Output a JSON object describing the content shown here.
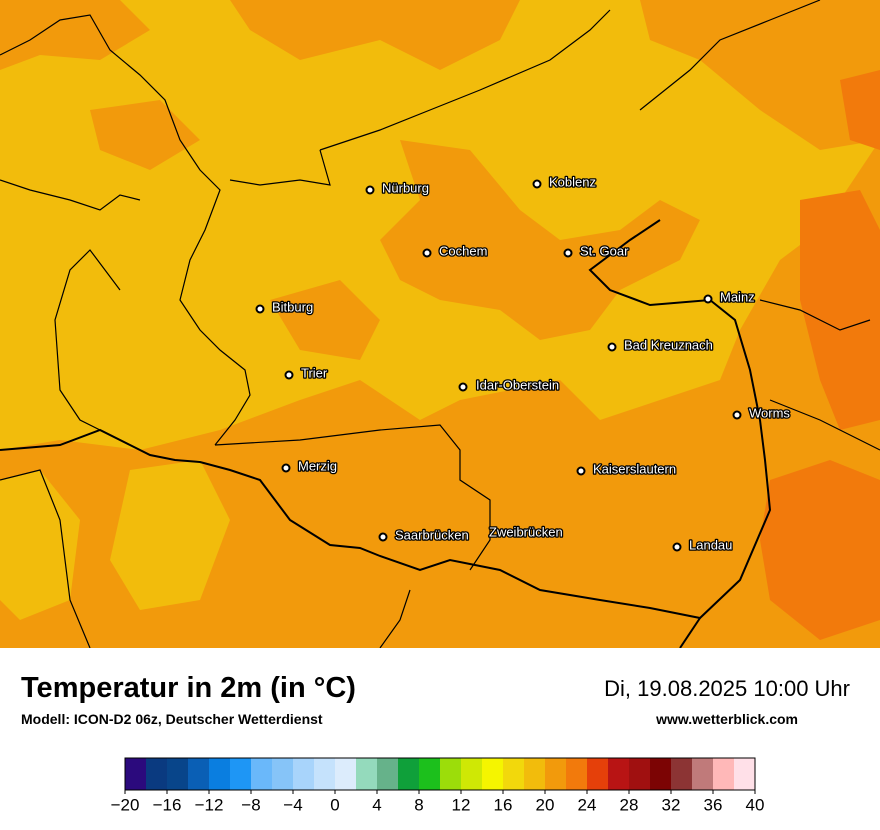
{
  "map": {
    "title": "Temperatur in 2m (in °C)",
    "subtitle": "Modell: ICON-D2 06z, Deutscher Wetterdienst",
    "date": "Di, 19.08.2025 10:00 Uhr",
    "website": "www.wetterblick.com",
    "cities": [
      "Nürburg",
      "Koblenz",
      "Cochem",
      "St. Goar",
      "Mainz",
      "Bitburg",
      "Bad Kreuznach",
      "Trier",
      "Idar-Oberstein",
      "Worms",
      "Merzig",
      "Kaiserslautern",
      "Saarbrücken",
      "Zweibrücken",
      "Landau"
    ],
    "colorbar": {
      "lim": [
        -20,
        40
      ],
      "colors": [
        "#2b0a7d",
        "#0a3a80",
        "#08458a",
        "#0a5fb5",
        "#0a7ee0",
        "#1e96f5",
        "#6ab8fa",
        "#86c4f8",
        "#a8d4fb",
        "#c5e2fc",
        "#dcecfc",
        "#94dabc",
        "#66b28a",
        "#0fa03a",
        "#1cc01c",
        "#9cdd0a",
        "#cfe805",
        "#f5f500",
        "#f2d80c",
        "#f2bc0c",
        "#f29a0c",
        "#f27a0c",
        "#e5400a",
        "#b81414",
        "#a01010",
        "#7c0404",
        "#8c3434",
        "#c07a7a",
        "#ffb8b8",
        "#ffe0e8"
      ],
      "ticks": [
        {
          "value": -20,
          "label": "−20"
        },
        {
          "value": -16,
          "label": "−16"
        },
        {
          "value": -12,
          "label": "−12"
        },
        {
          "value": -8,
          "label": "−8"
        },
        {
          "value": -4,
          "label": "−4"
        },
        0,
        4,
        8,
        12,
        16,
        20,
        24,
        28,
        32,
        36,
        40
      ]
    }
  }
}
